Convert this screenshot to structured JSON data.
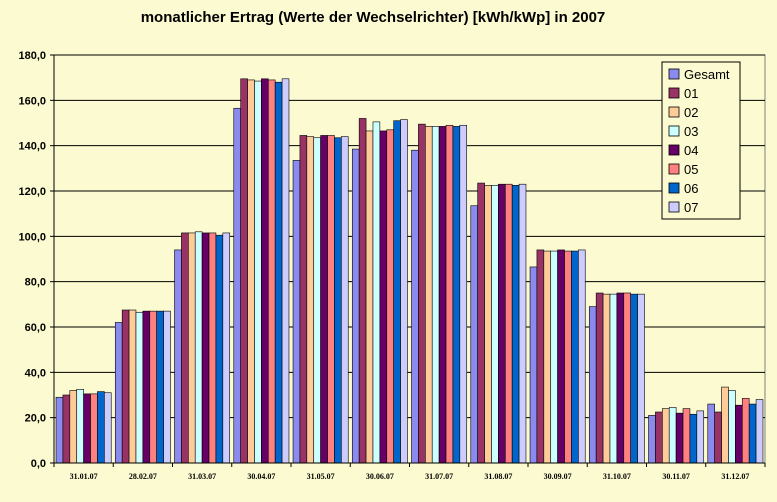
{
  "chart_data": {
    "type": "bar",
    "title": "monatlicher Ertrag (Werte der Wechselrichter) [kWh/kWp] in 2007",
    "xlabel": "",
    "ylabel": "",
    "ylim": [
      0,
      180
    ],
    "ytick_step": 20,
    "ytick_labels": [
      "0,0",
      "20,0",
      "40,0",
      "60,0",
      "80,0",
      "100,0",
      "120,0",
      "140,0",
      "160,0",
      "180,0"
    ],
    "grid": true,
    "legend_position": "top-right",
    "categories": [
      "31.01.07",
      "28.02.07",
      "31.03.07",
      "30.04.07",
      "31.05.07",
      "30.06.07",
      "31.07.07",
      "31.08.07",
      "30.09.07",
      "31.10.07",
      "30.11.07",
      "31.12.07"
    ],
    "series": [
      {
        "name": "Gesamt",
        "color": "#8b8bef",
        "values": [
          29,
          62,
          94,
          156.5,
          133.5,
          138.5,
          138,
          113.5,
          86.5,
          69,
          21,
          26
        ]
      },
      {
        "name": "01",
        "color": "#993366",
        "values": [
          30,
          67.5,
          101.5,
          169.5,
          144.5,
          152,
          149.5,
          123.5,
          94,
          75,
          22.5,
          22.5
        ]
      },
      {
        "name": "02",
        "color": "#ffcc99",
        "values": [
          32,
          67.5,
          101.5,
          169,
          144,
          146.5,
          148.5,
          122.5,
          93.5,
          74.5,
          24,
          33.5
        ]
      },
      {
        "name": "03",
        "color": "#ccffff",
        "values": [
          32.5,
          66.5,
          102,
          168.5,
          143.5,
          150.5,
          148.5,
          122.5,
          93.5,
          74.5,
          24.5,
          32
        ]
      },
      {
        "name": "04",
        "color": "#660066",
        "values": [
          30.5,
          67,
          101.5,
          169.5,
          144.5,
          146.5,
          148.5,
          123,
          94,
          75,
          22,
          25.5
        ]
      },
      {
        "name": "05",
        "color": "#ff8080",
        "values": [
          30.5,
          67,
          101.5,
          169,
          144.5,
          147,
          149,
          123,
          93.5,
          75,
          24,
          28.5
        ]
      },
      {
        "name": "06",
        "color": "#0066cc",
        "values": [
          31.5,
          67,
          100.5,
          168,
          143.5,
          151,
          148.5,
          122.5,
          93.5,
          74.5,
          21.5,
          26
        ]
      },
      {
        "name": "07",
        "color": "#ccccff",
        "values": [
          31,
          67,
          101.5,
          169.5,
          144,
          151.5,
          149,
          123,
          94,
          74.5,
          23,
          28
        ]
      }
    ]
  }
}
